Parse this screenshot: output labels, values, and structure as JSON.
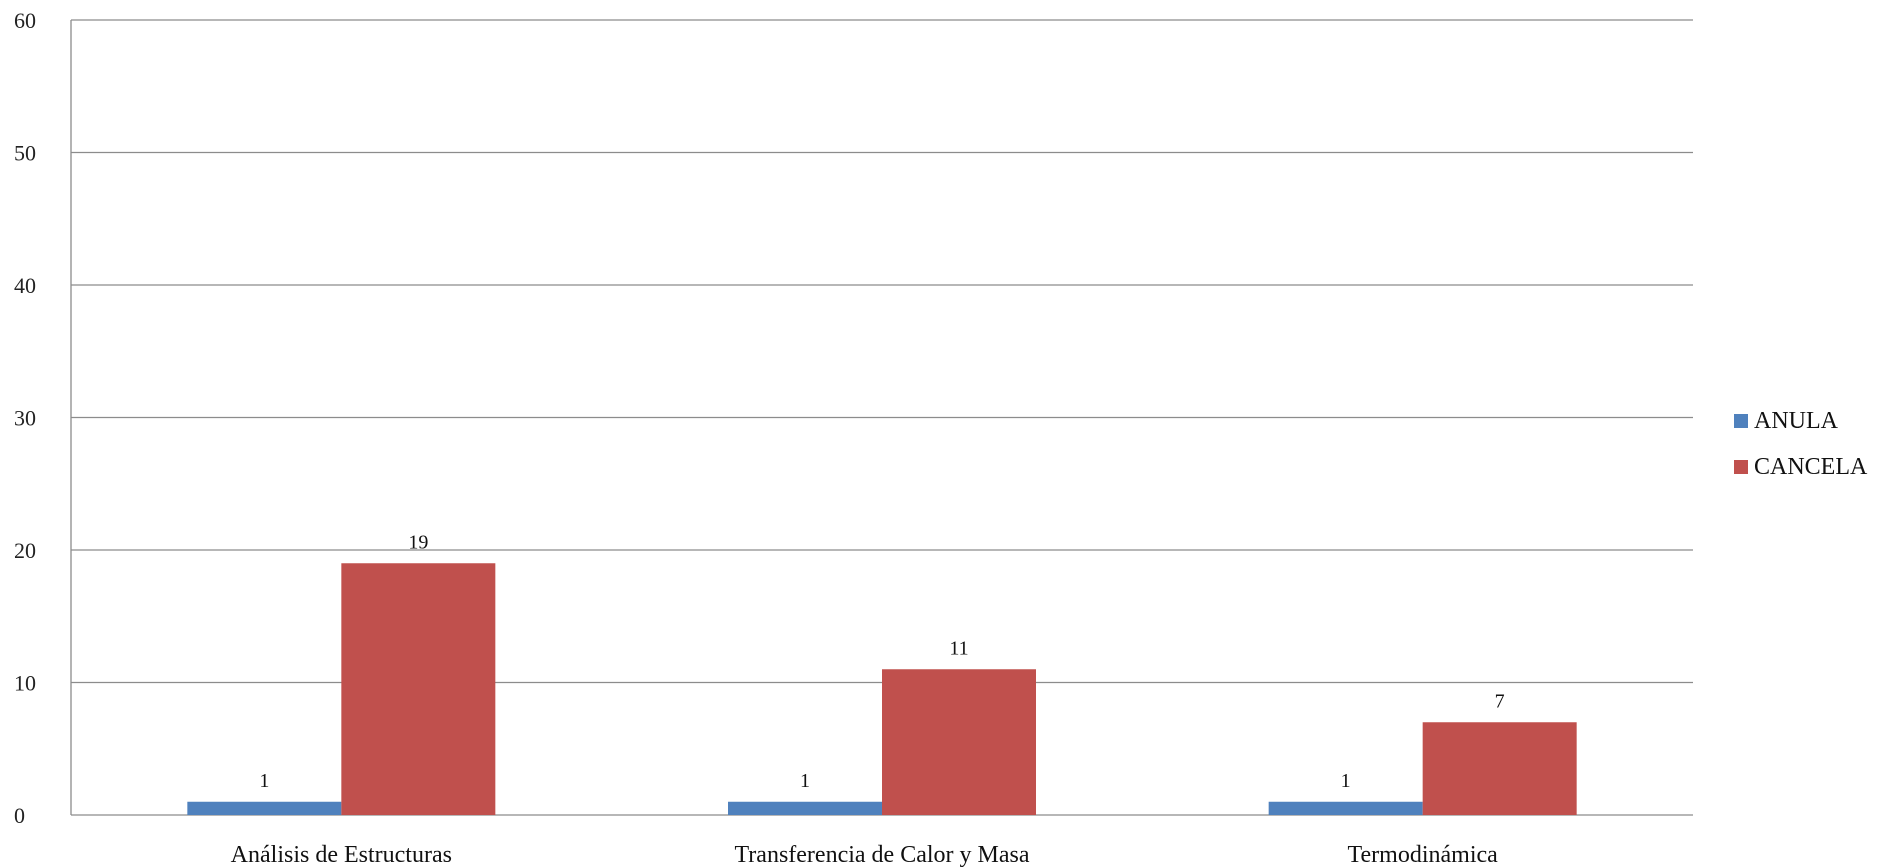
{
  "chart_data": {
    "type": "bar",
    "categories": [
      "Análisis de Estructuras",
      "Transferencia de Calor y Masa",
      "Termodinámica"
    ],
    "series": [
      {
        "name": "ANULA",
        "values": [
          1,
          1,
          1
        ],
        "color": "#4F81BD"
      },
      {
        "name": "CANCELA",
        "values": [
          19,
          11,
          7
        ],
        "color": "#C0504D"
      }
    ],
    "ylim": [
      0,
      60
    ],
    "yticks": [
      "0",
      "10",
      "20",
      "30",
      "40",
      "50",
      "60"
    ],
    "grid": true,
    "legend": "right",
    "data_labels": true
  }
}
